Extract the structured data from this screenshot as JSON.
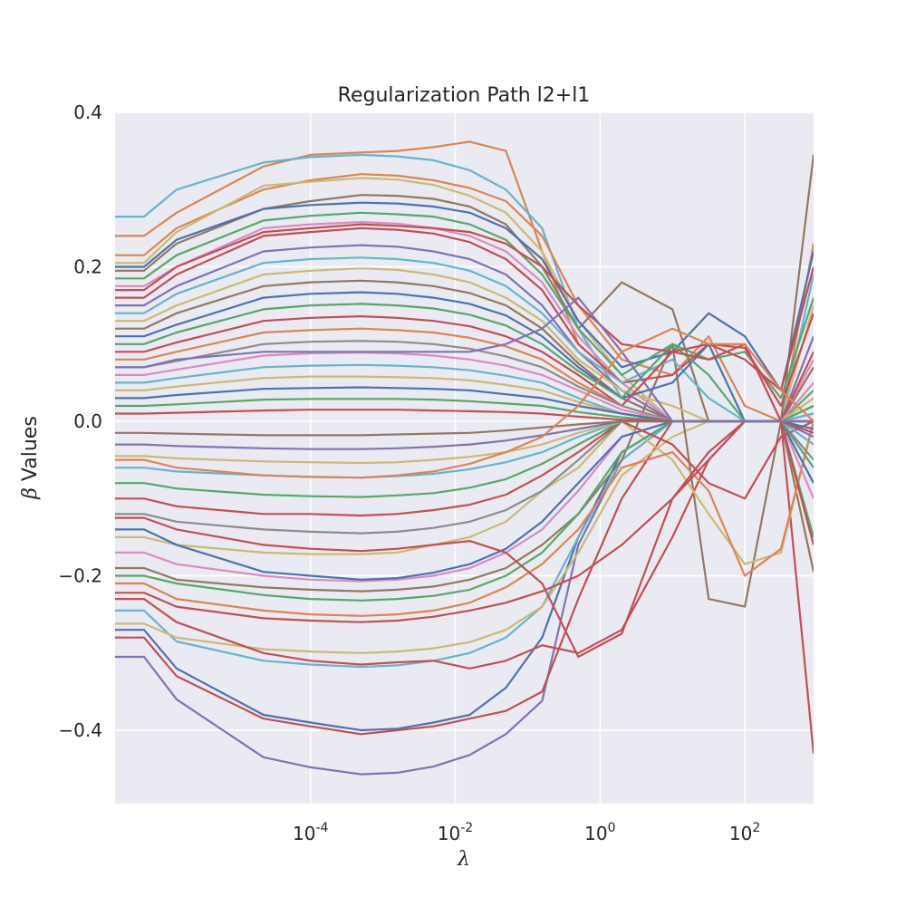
{
  "chart_data": {
    "type": "line",
    "title": "Regularization Path l2+l1",
    "xlabel": "λ",
    "ylabel_symbol": "β",
    "ylabel_text": " Values",
    "xscale": "log",
    "xlim_log10": [
      -6.7,
      2.95
    ],
    "ylim": [
      -0.495,
      0.4
    ],
    "grid": true,
    "background": "#eaeaf2",
    "palette": [
      "#4c72b0",
      "#dd8452",
      "#55a868",
      "#c44e52",
      "#8172b3",
      "#937860",
      "#da8bc3",
      "#8c8c8c",
      "#ccb974",
      "#64b5cd"
    ],
    "x_log10": [
      -6.7,
      -6.3,
      -5.85,
      -4.65,
      -4.0,
      -3.3,
      -2.8,
      -2.3,
      -1.8,
      -1.3,
      -0.8,
      -0.3,
      0.3,
      1.0,
      1.5,
      2.0,
      2.5,
      2.95
    ],
    "xticks": [
      {
        "log10": -4,
        "base": "10",
        "exp": "-4"
      },
      {
        "log10": -2,
        "base": "10",
        "exp": "-2"
      },
      {
        "log10": 0,
        "base": "10",
        "exp": "0"
      },
      {
        "log10": 2,
        "base": "10",
        "exp": "2"
      }
    ],
    "yticks": [
      {
        "value": 0.4,
        "label": "0.4"
      },
      {
        "value": 0.2,
        "label": "0.2"
      },
      {
        "value": 0.0,
        "label": "0.0"
      },
      {
        "value": -0.2,
        "label": "−0.2"
      },
      {
        "value": -0.4,
        "label": "−0.4"
      }
    ],
    "series": [
      {
        "color": "#8172b3",
        "values": [
          -0.305,
          -0.305,
          -0.36,
          -0.435,
          -0.448,
          -0.457,
          -0.455,
          -0.447,
          -0.432,
          -0.405,
          -0.362,
          -0.16,
          -0.05,
          0.0,
          0.0,
          0.0,
          0.0,
          0.0
        ]
      },
      {
        "color": "#c44e52",
        "values": [
          -0.28,
          -0.28,
          -0.33,
          -0.385,
          -0.395,
          -0.405,
          -0.4,
          -0.395,
          -0.385,
          -0.375,
          -0.35,
          -0.23,
          -0.1,
          0.0,
          0.0,
          0.0,
          0.0,
          0.0
        ]
      },
      {
        "color": "#4c72b0",
        "values": [
          -0.27,
          -0.27,
          -0.32,
          -0.38,
          -0.39,
          -0.4,
          -0.398,
          -0.39,
          -0.38,
          -0.345,
          -0.28,
          -0.15,
          -0.04,
          0.0,
          0.0,
          0.0,
          0.0,
          0.0
        ]
      },
      {
        "color": "#64b5cd",
        "values": [
          -0.245,
          -0.245,
          -0.285,
          -0.31,
          -0.315,
          -0.318,
          -0.316,
          -0.31,
          -0.3,
          -0.28,
          -0.24,
          -0.15,
          -0.05,
          0.0,
          0.0,
          0.0,
          0.0,
          0.0
        ]
      },
      {
        "color": "#ccb974",
        "values": [
          -0.262,
          -0.262,
          -0.28,
          -0.295,
          -0.298,
          -0.3,
          -0.298,
          -0.294,
          -0.286,
          -0.27,
          -0.24,
          -0.17,
          -0.07,
          -0.02,
          0.0,
          0.0,
          0.0,
          0.0
        ]
      },
      {
        "color": "#c44e52",
        "values": [
          -0.23,
          -0.23,
          -0.26,
          -0.3,
          -0.31,
          -0.315,
          -0.312,
          -0.31,
          -0.32,
          -0.31,
          -0.29,
          -0.3,
          -0.27,
          -0.15,
          -0.05,
          0.0,
          0.0,
          -0.43
        ]
      },
      {
        "color": "#937860",
        "values": [
          -0.19,
          -0.19,
          -0.205,
          -0.215,
          -0.218,
          -0.22,
          -0.218,
          -0.214,
          -0.205,
          -0.19,
          -0.16,
          -0.12,
          -0.05,
          0.1,
          -0.23,
          -0.24,
          0.0,
          -0.195
        ]
      },
      {
        "color": "#ccb974",
        "values": [
          -0.15,
          -0.15,
          -0.16,
          -0.17,
          -0.172,
          -0.172,
          -0.17,
          -0.16,
          -0.15,
          -0.13,
          -0.09,
          -0.06,
          0.0,
          -0.05,
          -0.12,
          -0.185,
          -0.17,
          0.0
        ]
      },
      {
        "color": "#dd8452",
        "values": [
          -0.21,
          -0.21,
          -0.23,
          -0.245,
          -0.25,
          -0.252,
          -0.25,
          -0.245,
          -0.235,
          -0.215,
          -0.185,
          -0.14,
          -0.06,
          -0.04,
          -0.09,
          -0.2,
          -0.165,
          0.0
        ]
      },
      {
        "color": "#55a868",
        "values": [
          -0.2,
          -0.2,
          -0.21,
          -0.225,
          -0.23,
          -0.232,
          -0.23,
          -0.226,
          -0.218,
          -0.2,
          -0.17,
          -0.12,
          -0.04,
          0.0,
          0.0,
          0.0,
          0.0,
          -0.15
        ]
      },
      {
        "color": "#da8bc3",
        "values": [
          -0.17,
          -0.17,
          -0.185,
          -0.2,
          -0.205,
          -0.207,
          -0.205,
          -0.2,
          -0.19,
          -0.17,
          -0.14,
          -0.09,
          -0.02,
          0.0,
          0.0,
          0.0,
          0.0,
          -0.1
        ]
      },
      {
        "color": "#4c72b0",
        "values": [
          -0.14,
          -0.14,
          -0.16,
          -0.195,
          -0.2,
          -0.205,
          -0.203,
          -0.196,
          -0.185,
          -0.165,
          -0.13,
          -0.08,
          -0.02,
          0.0,
          0.0,
          0.0,
          0.0,
          -0.08
        ]
      },
      {
        "color": "#8c8c8c",
        "values": [
          -0.12,
          -0.12,
          -0.13,
          -0.14,
          -0.143,
          -0.145,
          -0.143,
          -0.138,
          -0.13,
          -0.115,
          -0.09,
          -0.05,
          0.0,
          0.0,
          0.0,
          0.0,
          0.0,
          -0.05
        ]
      },
      {
        "color": "#c44e52",
        "values": [
          -0.1,
          -0.1,
          -0.11,
          -0.12,
          -0.12,
          -0.122,
          -0.12,
          -0.115,
          -0.108,
          -0.095,
          -0.07,
          -0.04,
          0.0,
          -0.03,
          -0.08,
          -0.1,
          -0.02,
          0.0
        ]
      },
      {
        "color": "#55a868",
        "values": [
          -0.08,
          -0.08,
          -0.087,
          -0.095,
          -0.097,
          -0.098,
          -0.096,
          -0.093,
          -0.086,
          -0.075,
          -0.055,
          -0.03,
          0.0,
          0.0,
          0.0,
          0.0,
          0.0,
          -0.06
        ]
      },
      {
        "color": "#64b5cd",
        "values": [
          -0.06,
          -0.06,
          -0.065,
          -0.07,
          -0.072,
          -0.073,
          -0.071,
          -0.068,
          -0.062,
          -0.053,
          -0.04,
          -0.02,
          0.0,
          0.0,
          0.0,
          0.0,
          0.0,
          -0.03
        ]
      },
      {
        "color": "#ccb974",
        "values": [
          -0.045,
          -0.045,
          -0.048,
          -0.052,
          -0.053,
          -0.054,
          -0.053,
          -0.05,
          -0.046,
          -0.04,
          -0.03,
          -0.015,
          0.0,
          0.0,
          0.0,
          0.0,
          0.0,
          0.02
        ]
      },
      {
        "color": "#8172b3",
        "values": [
          -0.03,
          -0.03,
          -0.032,
          -0.035,
          -0.036,
          -0.036,
          -0.035,
          -0.033,
          -0.03,
          -0.025,
          -0.018,
          -0.01,
          0.0,
          0.0,
          0.0,
          0.0,
          0.0,
          -0.02
        ]
      },
      {
        "color": "#937860",
        "values": [
          -0.015,
          -0.015,
          -0.016,
          -0.018,
          -0.018,
          -0.018,
          -0.017,
          -0.016,
          -0.015,
          -0.012,
          -0.008,
          -0.004,
          0.0,
          0.0,
          0.0,
          0.0,
          0.0,
          0.01
        ]
      },
      {
        "color": "#c44e52",
        "values": [
          -0.222,
          -0.222,
          -0.24,
          -0.255,
          -0.258,
          -0.26,
          -0.258,
          -0.253,
          -0.245,
          -0.235,
          -0.22,
          -0.2,
          -0.16,
          -0.1,
          -0.04,
          0.0,
          0.0,
          -0.16
        ]
      },
      {
        "color": "#c44e52",
        "values": [
          -0.125,
          -0.125,
          -0.14,
          -0.16,
          -0.165,
          -0.168,
          -0.165,
          -0.16,
          -0.155,
          -0.17,
          -0.21,
          -0.305,
          -0.275,
          -0.1,
          -0.05,
          0.0,
          0.0,
          0.0
        ]
      },
      {
        "color": "#dd8452",
        "values": [
          0.24,
          0.24,
          0.27,
          0.33,
          0.345,
          0.348,
          0.35,
          0.355,
          0.362,
          0.35,
          0.22,
          0.1,
          0.05,
          0.0,
          0.0,
          0.0,
          0.0,
          0.23
        ]
      },
      {
        "color": "#64b5cd",
        "values": [
          0.265,
          0.265,
          0.3,
          0.335,
          0.342,
          0.345,
          0.343,
          0.338,
          0.325,
          0.3,
          0.25,
          0.12,
          0.03,
          0.0,
          0.0,
          0.0,
          0.0,
          0.19
        ]
      },
      {
        "color": "#dd8452",
        "values": [
          0.215,
          0.215,
          0.25,
          0.3,
          0.312,
          0.32,
          0.318,
          0.312,
          0.302,
          0.285,
          0.24,
          0.15,
          0.08,
          0.06,
          0.11,
          0.02,
          0.0,
          0.0
        ]
      },
      {
        "color": "#ccb974",
        "values": [
          0.205,
          0.205,
          0.245,
          0.305,
          0.31,
          0.315,
          0.313,
          0.306,
          0.292,
          0.27,
          0.22,
          0.13,
          0.06,
          0.0,
          0.0,
          0.0,
          0.0,
          0.15
        ]
      },
      {
        "color": "#937860",
        "values": [
          0.195,
          0.195,
          0.23,
          0.275,
          0.285,
          0.293,
          0.292,
          0.288,
          0.278,
          0.255,
          0.2,
          0.12,
          0.18,
          0.145,
          0.0,
          0.0,
          0.0,
          0.345
        ]
      },
      {
        "color": "#4c72b0",
        "values": [
          0.2,
          0.2,
          0.235,
          0.275,
          0.28,
          0.283,
          0.282,
          0.278,
          0.27,
          0.25,
          0.21,
          0.13,
          0.07,
          0.09,
          0.14,
          0.11,
          0.04,
          0.22
        ]
      },
      {
        "color": "#55a868",
        "values": [
          0.185,
          0.185,
          0.215,
          0.26,
          0.266,
          0.27,
          0.268,
          0.265,
          0.255,
          0.235,
          0.19,
          0.12,
          0.06,
          0.1,
          0.08,
          0.09,
          0.03,
          0.16
        ]
      },
      {
        "color": "#da8bc3",
        "values": [
          0.175,
          0.175,
          0.2,
          0.25,
          0.255,
          0.258,
          0.256,
          0.25,
          0.24,
          0.22,
          0.18,
          0.11,
          0.05,
          0.0,
          0.0,
          0.0,
          0.0,
          0.08
        ]
      },
      {
        "color": "#c44e52",
        "values": [
          0.16,
          0.16,
          0.19,
          0.24,
          0.245,
          0.25,
          0.248,
          0.243,
          0.232,
          0.21,
          0.17,
          0.1,
          0.05,
          0.06,
          0.1,
          0.095,
          0.02,
          0.14
        ]
      },
      {
        "color": "#8172b3",
        "values": [
          0.15,
          0.15,
          0.175,
          0.22,
          0.225,
          0.228,
          0.226,
          0.22,
          0.21,
          0.19,
          0.15,
          0.09,
          0.04,
          0.0,
          0.0,
          0.0,
          0.0,
          0.11
        ]
      },
      {
        "color": "#64b5cd",
        "values": [
          0.14,
          0.14,
          0.165,
          0.205,
          0.21,
          0.212,
          0.21,
          0.205,
          0.195,
          0.175,
          0.14,
          0.09,
          0.05,
          0.08,
          0.03,
          0.0,
          0.0,
          0.0
        ]
      },
      {
        "color": "#ccb974",
        "values": [
          0.13,
          0.13,
          0.15,
          0.19,
          0.195,
          0.198,
          0.196,
          0.19,
          0.18,
          0.16,
          0.13,
          0.08,
          0.04,
          0.02,
          0.0,
          0.0,
          0.0,
          0.05
        ]
      },
      {
        "color": "#937860",
        "values": [
          0.12,
          0.12,
          0.14,
          0.175,
          0.18,
          0.182,
          0.18,
          0.175,
          0.166,
          0.15,
          0.12,
          0.075,
          0.03,
          0.0,
          0.0,
          0.0,
          0.0,
          0.07
        ]
      },
      {
        "color": "#4c72b0",
        "values": [
          0.11,
          0.11,
          0.125,
          0.16,
          0.165,
          0.167,
          0.165,
          0.16,
          0.152,
          0.137,
          0.11,
          0.07,
          0.03,
          0.05,
          0.1,
          0.0,
          0.0,
          0.0
        ]
      },
      {
        "color": "#55a868",
        "values": [
          0.1,
          0.1,
          0.115,
          0.145,
          0.15,
          0.152,
          0.15,
          0.146,
          0.138,
          0.124,
          0.1,
          0.065,
          0.03,
          0.1,
          0.06,
          0.0,
          0.0,
          0.04
        ]
      },
      {
        "color": "#c44e52",
        "values": [
          0.09,
          0.09,
          0.102,
          0.13,
          0.134,
          0.136,
          0.134,
          0.13,
          0.123,
          0.11,
          0.09,
          0.06,
          0.02,
          0.09,
          0.08,
          0.1,
          0.0,
          0.09
        ]
      },
      {
        "color": "#dd8452",
        "values": [
          0.08,
          0.08,
          0.09,
          0.115,
          0.118,
          0.12,
          0.118,
          0.115,
          0.108,
          0.097,
          0.08,
          0.05,
          0.02,
          0.0,
          0.0,
          0.0,
          0.0,
          0.03
        ]
      },
      {
        "color": "#8c8c8c",
        "values": [
          0.07,
          0.07,
          0.078,
          0.1,
          0.103,
          0.104,
          0.103,
          0.1,
          0.094,
          0.084,
          0.07,
          0.045,
          0.02,
          0.0,
          0.0,
          0.0,
          0.0,
          0.02
        ]
      },
      {
        "color": "#da8bc3",
        "values": [
          0.06,
          0.06,
          0.067,
          0.085,
          0.088,
          0.089,
          0.088,
          0.085,
          0.08,
          0.072,
          0.06,
          0.04,
          0.015,
          0.0,
          0.0,
          0.0,
          0.0,
          0.05
        ]
      },
      {
        "color": "#64b5cd",
        "values": [
          0.05,
          0.05,
          0.056,
          0.07,
          0.072,
          0.073,
          0.072,
          0.07,
          0.066,
          0.059,
          0.05,
          0.03,
          0.01,
          0.0,
          0.0,
          0.0,
          0.0,
          0.01
        ]
      },
      {
        "color": "#ccb974",
        "values": [
          0.04,
          0.04,
          0.045,
          0.056,
          0.058,
          0.058,
          0.057,
          0.056,
          0.053,
          0.047,
          0.04,
          0.025,
          0.01,
          0.0,
          0.0,
          0.0,
          0.0,
          0.03
        ]
      },
      {
        "color": "#4c72b0",
        "values": [
          0.03,
          0.03,
          0.034,
          0.042,
          0.043,
          0.044,
          0.043,
          0.042,
          0.04,
          0.035,
          0.03,
          0.02,
          0.01,
          0.0,
          0.0,
          0.0,
          0.0,
          -0.01
        ]
      },
      {
        "color": "#55a868",
        "values": [
          0.02,
          0.02,
          0.022,
          0.028,
          0.029,
          0.029,
          0.029,
          0.028,
          0.026,
          0.023,
          0.02,
          0.012,
          0.005,
          0.0,
          0.0,
          0.0,
          0.0,
          0.02
        ]
      },
      {
        "color": "#c44e52",
        "values": [
          0.01,
          0.01,
          0.011,
          0.014,
          0.015,
          0.015,
          0.015,
          0.014,
          0.013,
          0.012,
          0.01,
          0.006,
          0.002,
          0.0,
          0.0,
          0.0,
          0.0,
          -0.015
        ]
      },
      {
        "color": "#c44e52",
        "values": [
          0.17,
          0.17,
          0.2,
          0.245,
          0.25,
          0.255,
          0.253,
          0.25,
          0.245,
          0.23,
          0.2,
          0.15,
          0.1,
          0.09,
          0.1,
          0.08,
          0.04,
          0.2
        ]
      },
      {
        "color": "#8172b3",
        "values": [
          0.07,
          0.07,
          0.08,
          0.09,
          0.09,
          0.09,
          0.09,
          0.09,
          0.09,
          0.1,
          0.12,
          0.16,
          0.09,
          0.0,
          0.0,
          0.0,
          0.0,
          0.0
        ]
      },
      {
        "color": "#dd8452",
        "values": [
          -0.05,
          -0.05,
          -0.06,
          -0.07,
          -0.072,
          -0.073,
          -0.07,
          -0.065,
          -0.055,
          -0.04,
          -0.02,
          0.02,
          0.09,
          0.12,
          0.1,
          0.1,
          0.04,
          0.0
        ]
      }
    ]
  }
}
